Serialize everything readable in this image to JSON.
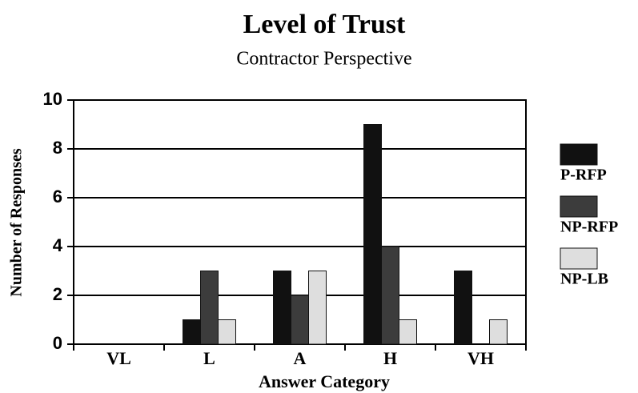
{
  "chart_data": {
    "type": "bar",
    "title": "Level of Trust",
    "subtitle": "Contractor Perspective",
    "x_label": "Answer Category",
    "y_label": "Number of Responses",
    "categories": [
      "VL",
      "L",
      "A",
      "H",
      "VH"
    ],
    "series": [
      {
        "name": "P-RFP",
        "color": "#111111",
        "values": [
          0,
          1,
          3,
          9,
          3
        ]
      },
      {
        "name": "NP-RFP",
        "color": "#3c3c3c",
        "values": [
          0,
          3,
          2,
          4,
          0
        ]
      },
      {
        "name": "NP-LB",
        "color": "#dedede",
        "values": [
          0,
          1,
          3,
          1,
          1
        ]
      }
    ],
    "ylim": [
      0,
      10
    ],
    "yticks": [
      0,
      2,
      4,
      6,
      8,
      10
    ],
    "grid": true,
    "legend": "right"
  }
}
